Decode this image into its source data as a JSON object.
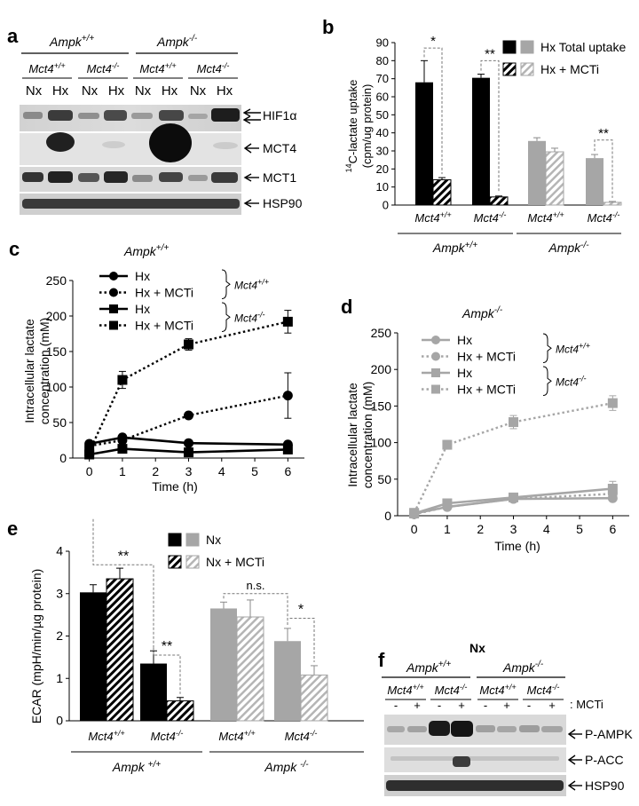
{
  "panels": {
    "a": {
      "label": "a",
      "group_ampk_wt": "Ampk",
      "group_ampk_wt_sup": "+/+",
      "group_ampk_ko": "Ampk",
      "group_ampk_ko_sup": "-/-",
      "subgroups": [
        {
          "name": "Mct4",
          "sup": "+/+"
        },
        {
          "name": "Mct4",
          "sup": "-/-"
        },
        {
          "name": "Mct4",
          "sup": "+/+"
        },
        {
          "name": "Mct4",
          "sup": "-/-"
        }
      ],
      "lanes": [
        "Nx",
        "Hx",
        "Nx",
        "Hx",
        "Nx",
        "Hx",
        "Nx",
        "Hx"
      ],
      "blots": [
        "HIF1α",
        "MCT4",
        "MCT1",
        "HSP90"
      ]
    },
    "f": {
      "label": "f",
      "title": "Nx",
      "group_ampk_wt": "Ampk",
      "group_ampk_wt_sup": "+/+",
      "group_ampk_ko": "Ampk",
      "group_ampk_ko_sup": "-/-",
      "subgroups": [
        {
          "name": "Mct4",
          "sup": "+/+"
        },
        {
          "name": "Mct4",
          "sup": "-/-"
        },
        {
          "name": "Mct4",
          "sup": "+/+"
        },
        {
          "name": "Mct4",
          "sup": "-/-"
        }
      ],
      "lanes": [
        "-",
        "+",
        "-",
        "+",
        "-",
        "+",
        "-",
        "+"
      ],
      "lane_key": ": MCTi",
      "blots": [
        "P-AMPK",
        "P-ACC",
        "HSP90"
      ]
    }
  },
  "chart_data": [
    {
      "panel": "b",
      "type": "bar",
      "ylabel_pre": "14",
      "ylabel_main": "C-lactate uptake",
      "ylabel_unit": "(cpm/ug protein)",
      "ylim": [
        0,
        90
      ],
      "yticks": [
        0,
        10,
        20,
        30,
        40,
        50,
        60,
        70,
        80,
        90
      ],
      "categories": [
        {
          "name": "Mct4",
          "sup": "+/+",
          "group": "Ampk",
          "group_sup": "+/+"
        },
        {
          "name": "Mct4",
          "sup": "-/-",
          "group": "Ampk",
          "group_sup": "+/+"
        },
        {
          "name": "Mct4",
          "sup": "+/+",
          "group": "Ampk",
          "group_sup": "-/-"
        },
        {
          "name": "Mct4",
          "sup": "-/-",
          "group": "Ampk",
          "group_sup": "-/-"
        }
      ],
      "groups": [
        {
          "name": "Ampk",
          "sup": "+/+"
        },
        {
          "name": "Ampk",
          "sup": "-/-"
        }
      ],
      "series": [
        {
          "name": "Hx Total uptake",
          "values": [
            68,
            70.5,
            35.5,
            26
          ],
          "errors": [
            12,
            2,
            1.8,
            2
          ]
        },
        {
          "name": "Hx + MCTi",
          "values": [
            14,
            4.5,
            29.5,
            1.5
          ],
          "errors": [
            1.2,
            0.5,
            2,
            0.5
          ]
        }
      ],
      "significance": [
        {
          "category": 0,
          "label": "*",
          "y": 87
        },
        {
          "category": 1,
          "label": "**",
          "y": 80
        },
        {
          "category": 3,
          "label": "**",
          "y": 36
        }
      ],
      "legend": "top-right"
    },
    {
      "panel": "c",
      "type": "line",
      "title": "Ampk",
      "title_sup": "+/+",
      "xlabel": "Time (h)",
      "ylabel_1": "Intracellular lactate",
      "ylabel_2": "concentration (mM)",
      "xlim": [
        -0.5,
        6.5
      ],
      "ylim": [
        0,
        250
      ],
      "xticks": [
        0,
        1,
        2,
        3,
        4,
        5,
        6
      ],
      "yticks": [
        0,
        50,
        100,
        150,
        200,
        250
      ],
      "series": [
        {
          "name": "Hx",
          "genotype": "Mct4",
          "genotype_sup": "+/+",
          "marker": "circle",
          "style": "solid",
          "x": [
            0,
            1,
            3,
            6
          ],
          "y": [
            20,
            29,
            21,
            19
          ],
          "errors": [
            2,
            3,
            2,
            2
          ]
        },
        {
          "name": "Hx + MCTi",
          "genotype": "Mct4",
          "genotype_sup": "+/+",
          "marker": "circle",
          "style": "dotted",
          "x": [
            0,
            1,
            3,
            6
          ],
          "y": [
            17,
            25,
            60,
            88
          ],
          "errors": [
            2,
            3,
            4,
            32
          ]
        },
        {
          "name": "Hx",
          "genotype": "Mct4",
          "genotype_sup": "-/-",
          "marker": "square",
          "style": "solid",
          "x": [
            0,
            1,
            3,
            6
          ],
          "y": [
            5,
            13,
            8,
            12
          ],
          "errors": [
            1,
            2,
            2,
            2
          ]
        },
        {
          "name": "Hx + MCTi",
          "genotype": "Mct4",
          "genotype_sup": "-/-",
          "marker": "square",
          "style": "dotted",
          "x": [
            0,
            1,
            3,
            6
          ],
          "y": [
            9,
            110,
            160,
            192
          ],
          "errors": [
            2,
            12,
            8,
            16
          ]
        }
      ],
      "color": "#000000"
    },
    {
      "panel": "d",
      "type": "line",
      "title": "Ampk",
      "title_sup": "-/-",
      "xlabel": "Time (h)",
      "ylabel_1": "Intracellular lactate",
      "ylabel_2": "concentration (mM)",
      "xlim": [
        -0.5,
        6.5
      ],
      "ylim": [
        0,
        250
      ],
      "xticks": [
        0,
        1,
        2,
        3,
        4,
        5,
        6
      ],
      "yticks": [
        0,
        50,
        100,
        150,
        200,
        250
      ],
      "series": [
        {
          "name": "Hx",
          "genotype": "Mct4",
          "genotype_sup": "+/+",
          "marker": "circle",
          "style": "solid",
          "x": [
            0,
            1,
            3,
            6
          ],
          "y": [
            3,
            12,
            23,
            24
          ],
          "errors": [
            1,
            2,
            2,
            3
          ]
        },
        {
          "name": "Hx + MCTi",
          "genotype": "Mct4",
          "genotype_sup": "+/+",
          "marker": "circle",
          "style": "dotted",
          "x": [
            0,
            1,
            3,
            6
          ],
          "y": [
            2,
            12,
            23,
            30
          ],
          "errors": [
            1,
            2,
            2,
            4
          ]
        },
        {
          "name": "Hx",
          "genotype": "Mct4",
          "genotype_sup": "-/-",
          "marker": "square",
          "style": "solid",
          "x": [
            0,
            1,
            3,
            6
          ],
          "y": [
            3,
            17,
            25,
            37
          ],
          "errors": [
            1,
            3,
            2,
            10
          ]
        },
        {
          "name": "Hx + MCTi",
          "genotype": "Mct4",
          "genotype_sup": "-/-",
          "marker": "square",
          "style": "dotted",
          "x": [
            0,
            1,
            3,
            6
          ],
          "y": [
            4,
            97,
            128,
            154
          ],
          "errors": [
            1,
            6,
            9,
            10
          ]
        }
      ],
      "color": "#a6a6a6"
    },
    {
      "panel": "e",
      "type": "bar",
      "ylabel": "ECAR (mpH/min/µg protein)",
      "ylim": [
        0,
        4
      ],
      "yticks": [
        0,
        1,
        2,
        3,
        4
      ],
      "categories": [
        {
          "name": "Mct4",
          "sup": "+/+",
          "group": "Ampk",
          "group_sup": "+/+"
        },
        {
          "name": "Mct4",
          "sup": "-/-",
          "group": "Ampk",
          "group_sup": "+/+"
        },
        {
          "name": "Mct4",
          "sup": "+/+",
          "group": "Ampk",
          "group_sup": "-/-"
        },
        {
          "name": "Mct4",
          "sup": "-/-",
          "group": "Ampk",
          "group_sup": "-/-"
        }
      ],
      "groups": [
        {
          "name": "Ampk ",
          "sup": "+/+"
        },
        {
          "name": "Ampk ",
          "sup": "-/-"
        }
      ],
      "series": [
        {
          "name": "Nx",
          "values": [
            3.03,
            1.35,
            2.65,
            1.88
          ],
          "errors": [
            0.18,
            0.3,
            0.15,
            0.3
          ]
        },
        {
          "name": "Nx + MCTi",
          "values": [
            3.35,
            0.47,
            2.45,
            1.08
          ],
          "errors": [
            0.25,
            0.08,
            0.4,
            0.22
          ]
        }
      ],
      "significance": [
        {
          "label": "**",
          "from": 0,
          "to": 1,
          "y": 3.68
        },
        {
          "label": "**",
          "from": 1,
          "to": 1,
          "y": 1.55
        },
        {
          "label": "n.s.",
          "from": 2,
          "to": 3,
          "y": 3.0
        },
        {
          "label": "*",
          "from": 3,
          "to": 3,
          "y": 2.42
        }
      ],
      "legend": "top-right"
    }
  ]
}
